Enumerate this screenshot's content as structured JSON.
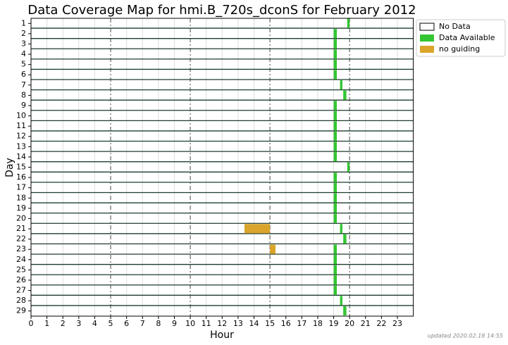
{
  "chart_data": {
    "type": "broken_bar",
    "title": "Data Coverage Map for hmi.B_720s_dconS for February 2012",
    "x_label": "Hour",
    "y_label": "Day",
    "categories": [
      "1",
      "2",
      "3",
      "4",
      "5",
      "6",
      "7",
      "8",
      "9",
      "10",
      "11",
      "12",
      "13",
      "14",
      "15",
      "16",
      "17",
      "18",
      "19",
      "20",
      "21",
      "22",
      "23",
      "24",
      "25",
      "26",
      "27",
      "28",
      "29"
    ],
    "xlim": [
      0,
      24
    ],
    "xticks": [
      0,
      1,
      2,
      3,
      4,
      5,
      6,
      7,
      8,
      9,
      10,
      11,
      12,
      13,
      14,
      15,
      16,
      17,
      18,
      19,
      20,
      21,
      22,
      23
    ],
    "series": [
      {
        "name": "No Data",
        "color": "#ffffff"
      },
      {
        "name": "Data Available",
        "color": "#33c633",
        "start": [
          19.85,
          19.0,
          19.0,
          19.0,
          19.0,
          19.0,
          19.4,
          19.6,
          19.0,
          19.0,
          19.0,
          19.0,
          19.0,
          19.0,
          19.85,
          19.0,
          19.0,
          19.0,
          19.0,
          19.0,
          19.4,
          19.6,
          19.0,
          19.0,
          19.0,
          19.0,
          19.0,
          19.4,
          19.6
        ],
        "end": [
          20.0,
          19.2,
          19.2,
          19.2,
          19.2,
          19.2,
          19.55,
          19.8,
          19.2,
          19.2,
          19.2,
          19.2,
          19.2,
          19.2,
          20.0,
          19.2,
          19.2,
          19.2,
          19.2,
          19.2,
          19.55,
          19.8,
          19.2,
          19.2,
          19.2,
          19.2,
          19.2,
          19.55,
          19.8
        ]
      },
      {
        "name": "no guiding",
        "color": "#daa52a",
        "start": [
          null,
          null,
          null,
          null,
          null,
          null,
          null,
          null,
          null,
          null,
          null,
          null,
          null,
          null,
          null,
          null,
          null,
          null,
          null,
          null,
          13.4,
          null,
          15.0,
          null,
          null,
          null,
          null,
          null,
          null
        ],
        "end": [
          null,
          null,
          null,
          null,
          null,
          null,
          null,
          null,
          null,
          null,
          null,
          null,
          null,
          null,
          null,
          null,
          null,
          null,
          null,
          null,
          15.0,
          null,
          15.35,
          null,
          null,
          null,
          null,
          null,
          null
        ]
      }
    ],
    "footnote": "updated 2020.02.18 14:55"
  }
}
